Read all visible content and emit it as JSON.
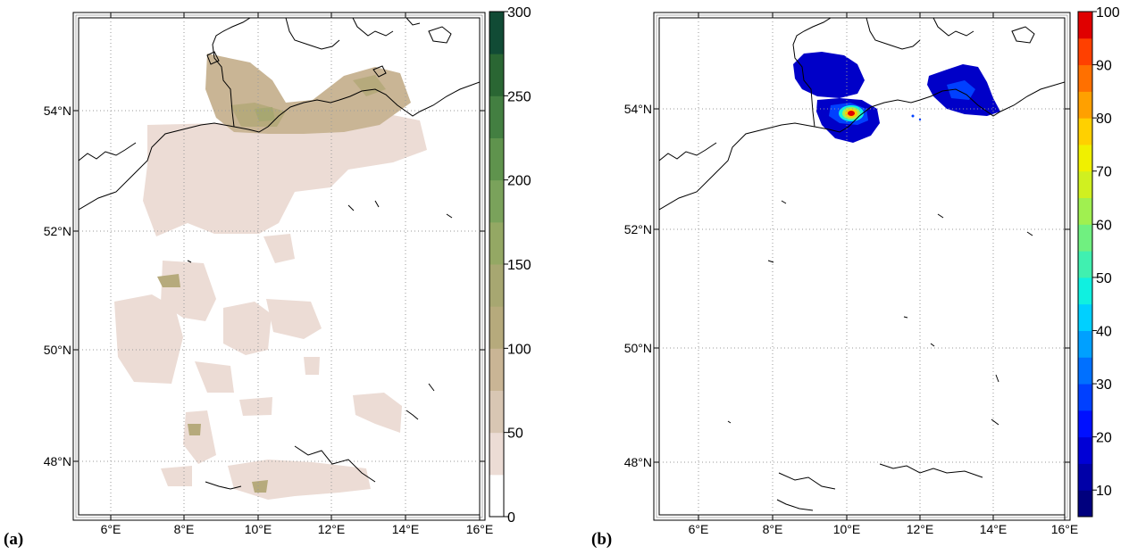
{
  "panels": [
    {
      "label": "(a)",
      "x_ticks": [
        "6°E",
        "8°E",
        "10°E",
        "12°E",
        "14°E",
        "16°E"
      ],
      "y_ticks": [
        "54°N",
        "52°N",
        "50°N",
        "48°N"
      ],
      "colorbar": {
        "ticks": [
          "0",
          "50",
          "100",
          "150",
          "200",
          "250",
          "300"
        ],
        "range": [
          0,
          300
        ],
        "levels": 12,
        "colors": [
          "#ffffff",
          "#ecdcd5",
          "#d8c6b3",
          "#c9b595",
          "#b6aa7c",
          "#a7a771",
          "#94a864",
          "#7aa25b",
          "#5f934d",
          "#437f41",
          "#2a6633",
          "#114b35"
        ]
      },
      "layer": "tan-green shaded field over northern and southern Germany"
    },
    {
      "label": "(b)",
      "x_ticks": [
        "6°E",
        "8°E",
        "10°E",
        "12°E",
        "14°E",
        "16°E"
      ],
      "y_ticks": [
        "54°N",
        "52°N",
        "50°N",
        "48°N"
      ],
      "colorbar": {
        "ticks": [
          "10",
          "20",
          "30",
          "40",
          "50",
          "60",
          "70",
          "80",
          "90",
          "100"
        ],
        "range": [
          5,
          100
        ],
        "levels": 19,
        "colors": [
          "#00007e",
          "#0000a8",
          "#0000d6",
          "#0010ff",
          "#0040ff",
          "#0070ff",
          "#00a0ff",
          "#00d0ff",
          "#10f0e0",
          "#40f0b0",
          "#70f080",
          "#a0f050",
          "#d0f020",
          "#f0f000",
          "#ffd000",
          "#ffa000",
          "#ff7000",
          "#ff4000",
          "#e00000"
        ]
      },
      "layer": "blue patches over northern Germany with red hotspot"
    }
  ]
}
